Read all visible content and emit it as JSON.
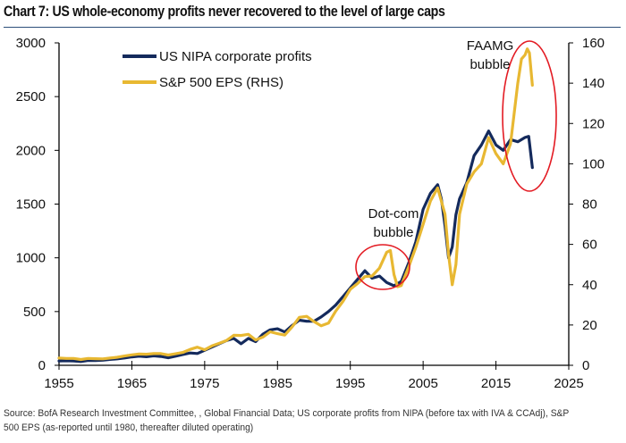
{
  "title": "Chart 7: US whole-economy profits never recovered to the level of large caps",
  "source": "Source: BofA Research Investment Committee, , Global Financial Data; US corporate profits from NIPA (before tax with IVA & CCAdj), S&P 500 EPS (as-reported until 1980, thereafter diluted operating)",
  "colors": {
    "nipa": "#142a5c",
    "eps": "#e8b832",
    "annotation_ellipse": "#e31b23",
    "axis": "#000000"
  },
  "chart_data": {
    "type": "line",
    "title": "Chart 7: US whole-economy profits never recovered to the level of large caps",
    "xlabel": "",
    "ylabel_left": "",
    "ylabel_right": "",
    "xlim": [
      1955,
      2025
    ],
    "ylim_left": [
      0,
      3000
    ],
    "ylim_right": [
      0,
      160
    ],
    "x_ticks": [
      "1955",
      "1965",
      "1975",
      "1985",
      "1995",
      "2005",
      "2015",
      "2025"
    ],
    "y_ticks_left": [
      "0",
      "500",
      "1000",
      "1500",
      "2000",
      "2500",
      "3000"
    ],
    "y_ticks_right": [
      "0",
      "20",
      "40",
      "60",
      "80",
      "100",
      "120",
      "140",
      "160"
    ],
    "grid": false,
    "legend_position": "top-left",
    "series": [
      {
        "name": "US NIPA corporate profits",
        "axis": "left",
        "x": [
          1955,
          1956,
          1957,
          1958,
          1959,
          1960,
          1961,
          1962,
          1963,
          1964,
          1965,
          1966,
          1967,
          1968,
          1969,
          1970,
          1971,
          1972,
          1973,
          1974,
          1975,
          1976,
          1977,
          1978,
          1979,
          1980,
          1981,
          1982,
          1983,
          1984,
          1985,
          1986,
          1987,
          1988,
          1989,
          1990,
          1991,
          1992,
          1993,
          1994,
          1995,
          1996,
          1997,
          1998,
          1999,
          2000,
          2001,
          2002,
          2003,
          2004,
          2005,
          2006,
          2007,
          2007.5,
          2008,
          2008.5,
          2009,
          2009.5,
          2010,
          2011,
          2012,
          2013,
          2014,
          2015,
          2016,
          2017,
          2018,
          2019,
          2019.5,
          2020
        ],
        "values": [
          40,
          42,
          40,
          35,
          45,
          45,
          47,
          55,
          60,
          68,
          78,
          85,
          80,
          88,
          82,
          70,
          85,
          100,
          115,
          110,
          140,
          170,
          200,
          230,
          250,
          200,
          250,
          220,
          290,
          330,
          340,
          310,
          370,
          420,
          410,
          410,
          450,
          500,
          560,
          640,
          720,
          800,
          880,
          810,
          830,
          770,
          740,
          780,
          950,
          1150,
          1450,
          1600,
          1680,
          1550,
          1300,
          1000,
          1100,
          1400,
          1550,
          1700,
          1950,
          2050,
          2180,
          2050,
          2000,
          2100,
          2080,
          2120,
          2130,
          1840
        ]
      },
      {
        "name": "S&P 500 EPS (RHS)",
        "axis": "right",
        "x": [
          1955,
          1956,
          1957,
          1958,
          1959,
          1960,
          1961,
          1962,
          1963,
          1964,
          1965,
          1966,
          1967,
          1968,
          1969,
          1970,
          1971,
          1972,
          1973,
          1974,
          1975,
          1976,
          1977,
          1978,
          1979,
          1980,
          1981,
          1982,
          1983,
          1984,
          1985,
          1986,
          1987,
          1988,
          1989,
          1990,
          1991,
          1992,
          1993,
          1994,
          1995,
          1996,
          1997,
          1998,
          1999,
          2000,
          2000.5,
          2001,
          2001.5,
          2002,
          2003,
          2004,
          2005,
          2006,
          2007,
          2008,
          2008.5,
          2009,
          2009.5,
          2010,
          2011,
          2012,
          2013,
          2014,
          2015,
          2016,
          2017,
          2018,
          2018.5,
          2019,
          2019.3,
          2019.6,
          2020
        ],
        "values": [
          3.6,
          3.4,
          3.4,
          2.9,
          3.4,
          3.3,
          3.2,
          3.6,
          4.0,
          4.6,
          5.2,
          5.6,
          5.5,
          5.8,
          5.8,
          5.1,
          5.7,
          6.4,
          7.9,
          9.0,
          7.7,
          9.6,
          10.9,
          12.3,
          14.9,
          14.8,
          15.4,
          12.6,
          14.0,
          16.6,
          15.7,
          15.0,
          19.0,
          23.8,
          24.3,
          21.7,
          19.6,
          20.9,
          26.9,
          31.8,
          37.7,
          40.6,
          44.0,
          44.3,
          48.2,
          56.1,
          57,
          45,
          39,
          39.6,
          48.7,
          58.6,
          69.9,
          81.5,
          88,
          75,
          55,
          40,
          50,
          75,
          90,
          96,
          100,
          113,
          105,
          100,
          110,
          140,
          152,
          154,
          157,
          155,
          139
        ]
      }
    ],
    "annotations": [
      {
        "text_lines": [
          "Dot-com",
          "bubble"
        ],
        "target_years": [
          1999,
          2002
        ]
      },
      {
        "text_lines": [
          "FAAMG",
          "bubble"
        ],
        "target_years": [
          2016,
          2020
        ]
      }
    ]
  },
  "legend": [
    {
      "label": "US NIPA corporate profits",
      "color": "#142a5c"
    },
    {
      "label": "S&P 500 EPS (RHS)",
      "color": "#e8b832"
    }
  ]
}
